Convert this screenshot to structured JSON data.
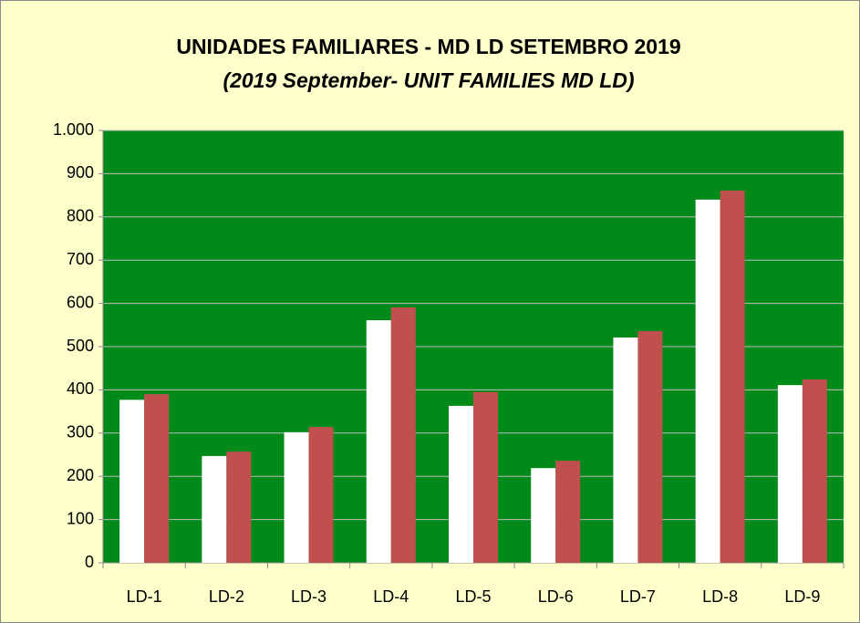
{
  "chart_data": {
    "type": "bar",
    "title": "UNIDADES FAMILIARES - MD LD SETEMBRO 2019",
    "subtitle": "(2019 September- UNIT FAMILIES MD LD)",
    "categories": [
      "LD-1",
      "LD-2",
      "LD-3",
      "LD-4",
      "LD-5",
      "LD-6",
      "LD-7",
      "LD-8",
      "LD-9"
    ],
    "series": [
      {
        "color": "#ffffff",
        "values": [
          377,
          247,
          302,
          561,
          363,
          219,
          521,
          840,
          411
        ]
      },
      {
        "color": "#c0504d",
        "values": [
          390,
          257,
          314,
          591,
          395,
          236,
          536,
          861,
          424
        ]
      }
    ],
    "ylim": [
      0,
      1000
    ],
    "yticks": [
      0,
      100,
      200,
      300,
      400,
      500,
      600,
      700,
      800,
      900,
      {
        "value": 1000,
        "label": "1.000"
      }
    ],
    "grid": true,
    "plot_background": "#008a1a",
    "background": "#ffffcc"
  }
}
